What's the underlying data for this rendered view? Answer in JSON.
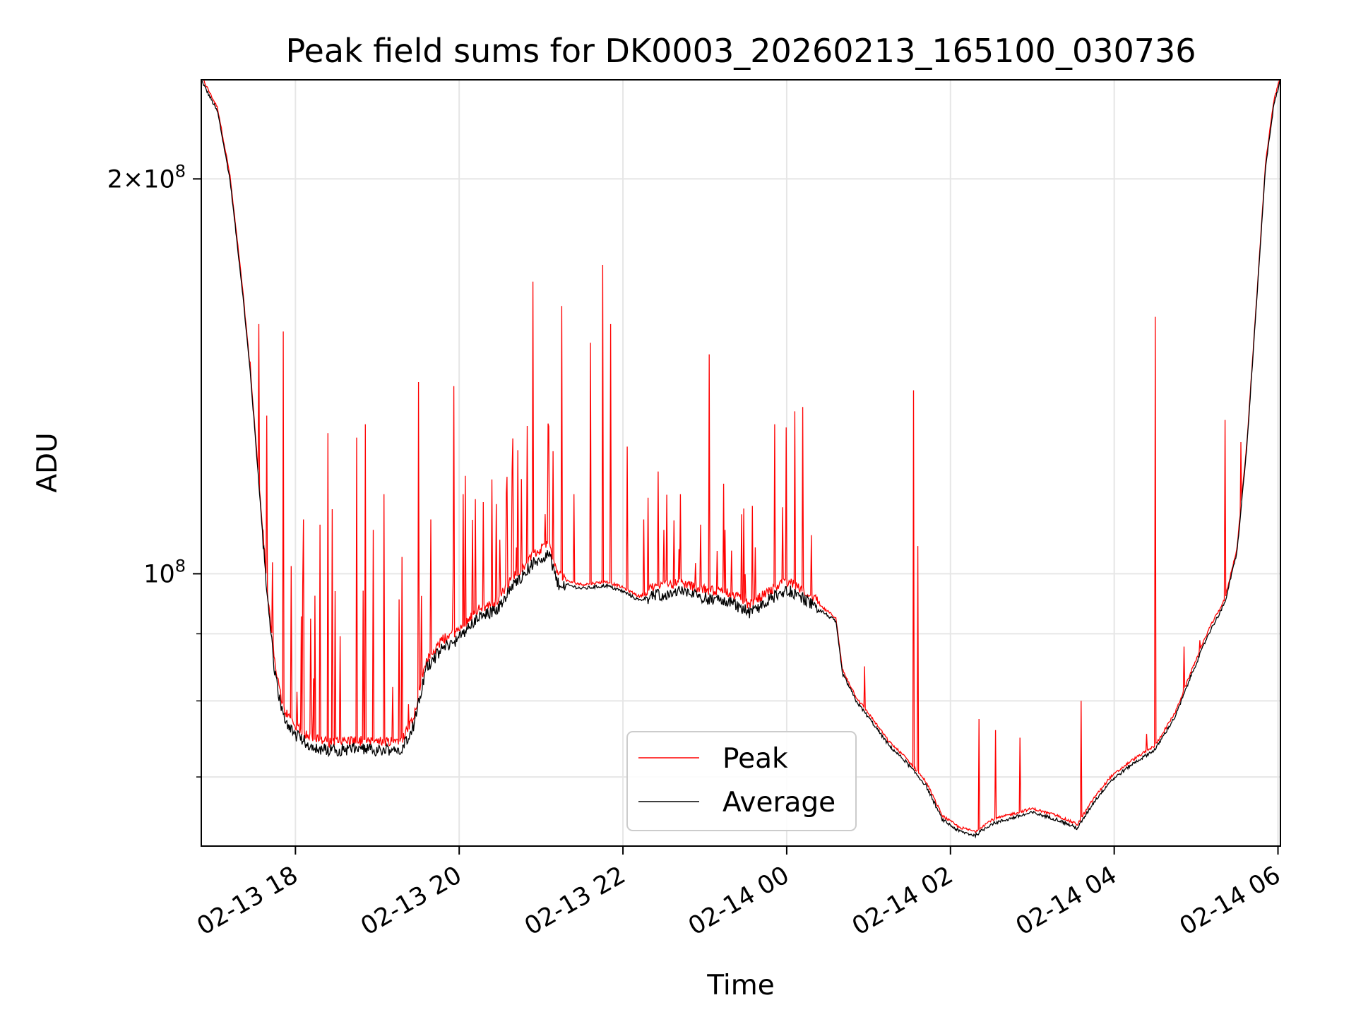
{
  "chart_data": {
    "type": "line",
    "title": "Peak field sums for DK0003_20260213_165100_030736",
    "xlabel": "Time",
    "ylabel": "ADU",
    "yscale": "log",
    "xlim": [
      16.85,
      30.03
    ],
    "ylim": [
      62000000,
      238000000
    ],
    "grid": true,
    "legend_position": "lower-center",
    "x_ticks": [
      {
        "value": 18,
        "label": "02-13 18"
      },
      {
        "value": 20,
        "label": "02-13 20"
      },
      {
        "value": 22,
        "label": "02-13 22"
      },
      {
        "value": 24,
        "label": "02-14 00"
      },
      {
        "value": 26,
        "label": "02-14 02"
      },
      {
        "value": 28,
        "label": "02-14 04"
      },
      {
        "value": 30,
        "label": "02-14 06"
      }
    ],
    "y_ticks_major": [
      {
        "value": 200000000,
        "mantissa": "2",
        "exponent": "8"
      },
      {
        "value": 100000000,
        "mantissa": "",
        "exponent": "8"
      }
    ],
    "y_ticks_minor": [
      70000000,
      80000000,
      90000000
    ],
    "baseline": [
      [
        16.85,
        238000000
      ],
      [
        17.05,
        225000000
      ],
      [
        17.2,
        200000000
      ],
      [
        17.35,
        165000000
      ],
      [
        17.45,
        142000000
      ],
      [
        17.55,
        118000000
      ],
      [
        17.65,
        97000000
      ],
      [
        17.75,
        84000000
      ],
      [
        17.85,
        78000000
      ],
      [
        18.0,
        75500000
      ],
      [
        18.2,
        74000000
      ],
      [
        18.4,
        73500000
      ],
      [
        18.7,
        73700000
      ],
      [
        19.0,
        73500000
      ],
      [
        19.3,
        73800000
      ],
      [
        19.45,
        77000000
      ],
      [
        19.6,
        85000000
      ],
      [
        19.8,
        88000000
      ],
      [
        20.0,
        89500000
      ],
      [
        20.2,
        92500000
      ],
      [
        20.45,
        94000000
      ],
      [
        20.65,
        98000000
      ],
      [
        20.9,
        102000000
      ],
      [
        21.1,
        104000000
      ],
      [
        21.2,
        98500000
      ],
      [
        21.5,
        97500000
      ],
      [
        21.8,
        98000000
      ],
      [
        22.0,
        97000000
      ],
      [
        22.2,
        95500000
      ],
      [
        22.4,
        96500000
      ],
      [
        22.7,
        97200000
      ],
      [
        23.0,
        96000000
      ],
      [
        23.3,
        95500000
      ],
      [
        23.55,
        93500000
      ],
      [
        23.75,
        95500000
      ],
      [
        24.0,
        97500000
      ],
      [
        24.2,
        96000000
      ],
      [
        24.45,
        93500000
      ],
      [
        24.6,
        92000000
      ],
      [
        24.68,
        84000000
      ],
      [
        24.85,
        80000000
      ],
      [
        25.05,
        77000000
      ],
      [
        25.25,
        74000000
      ],
      [
        25.45,
        72000000
      ],
      [
        25.7,
        69000000
      ],
      [
        25.9,
        65000000
      ],
      [
        26.1,
        63700000
      ],
      [
        26.3,
        63200000
      ],
      [
        26.5,
        64500000
      ],
      [
        26.8,
        65300000
      ],
      [
        27.0,
        65800000
      ],
      [
        27.3,
        65000000
      ],
      [
        27.55,
        64000000
      ],
      [
        27.75,
        67000000
      ],
      [
        27.95,
        69500000
      ],
      [
        28.2,
        71500000
      ],
      [
        28.5,
        73500000
      ],
      [
        28.75,
        78000000
      ],
      [
        28.95,
        84000000
      ],
      [
        29.15,
        90000000
      ],
      [
        29.35,
        95000000
      ],
      [
        29.5,
        104000000
      ],
      [
        29.62,
        125000000
      ],
      [
        29.75,
        165000000
      ],
      [
        29.85,
        205000000
      ],
      [
        29.95,
        228000000
      ],
      [
        30.03,
        238000000
      ]
    ],
    "peak_spikes": [
      [
        17.45,
        145000000
      ],
      [
        17.55,
        155000000
      ],
      [
        17.65,
        132000000
      ],
      [
        17.85,
        153000000
      ],
      [
        18.1,
        110000000
      ],
      [
        18.3,
        109000000
      ],
      [
        18.4,
        128000000
      ],
      [
        18.45,
        112000000
      ],
      [
        18.75,
        127000000
      ],
      [
        18.85,
        130000000
      ],
      [
        18.95,
        108000000
      ],
      [
        19.08,
        115000000
      ],
      [
        19.3,
        103000000
      ],
      [
        19.5,
        140000000
      ],
      [
        19.65,
        110000000
      ],
      [
        19.93,
        139000000
      ],
      [
        20.05,
        115000000
      ],
      [
        20.2,
        114000000
      ],
      [
        20.4,
        118000000
      ],
      [
        20.45,
        113000000
      ],
      [
        20.65,
        120000000
      ],
      [
        20.9,
        167000000
      ],
      [
        21.05,
        111000000
      ],
      [
        21.15,
        124000000
      ],
      [
        21.25,
        160000000
      ],
      [
        21.4,
        115000000
      ],
      [
        21.6,
        150000000
      ],
      [
        21.75,
        172000000
      ],
      [
        21.85,
        155000000
      ],
      [
        22.05,
        125000000
      ],
      [
        22.25,
        110000000
      ],
      [
        22.5,
        108000000
      ],
      [
        22.7,
        115000000
      ],
      [
        22.95,
        109000000
      ],
      [
        23.05,
        147000000
      ],
      [
        23.25,
        108000000
      ],
      [
        23.45,
        111000000
      ],
      [
        23.85,
        130000000
      ],
      [
        24.1,
        133000000
      ],
      [
        24.2,
        134000000
      ],
      [
        24.3,
        107000000
      ],
      [
        24.95,
        85000000
      ],
      [
        25.55,
        138000000
      ],
      [
        25.6,
        105000000
      ],
      [
        26.35,
        77500000
      ],
      [
        26.55,
        76000000
      ],
      [
        26.85,
        75000000
      ],
      [
        27.6,
        80000000
      ],
      [
        28.4,
        75500000
      ],
      [
        28.5,
        157000000
      ],
      [
        28.85,
        88000000
      ],
      [
        29.05,
        89000000
      ],
      [
        29.35,
        131000000
      ],
      [
        29.55,
        126000000
      ]
    ]
  },
  "legend": {
    "peak_label": "Peak",
    "average_label": "Average",
    "peak_color": "#ff0000",
    "average_color": "#000000"
  }
}
